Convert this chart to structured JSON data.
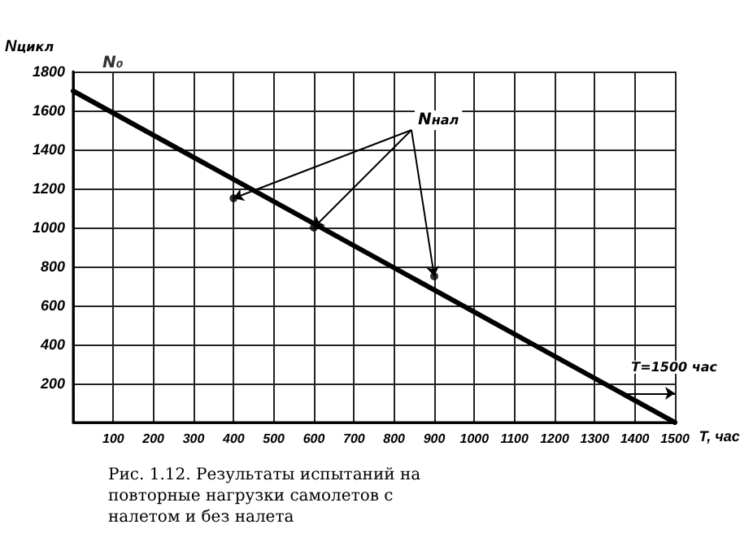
{
  "chart_data": {
    "type": "line",
    "title": "Рис. 1.12. Результаты испытаний на повторные нагрузки самолетов с налетом и без налета",
    "xlabel": "T, час",
    "ylabel": "N$_{цикл}$",
    "series": [
      {
        "color": "#000000",
        "x": [
          0,
          1500
        ],
        "values": [
          1700,
          0
        ],
        "marker": "none",
        "line_style": "solid"
      },
      {
        "type": "scatter",
        "color": "#000000",
        "x": [
          400,
          600,
          900
        ],
        "values": [
          1150,
          1000,
          750
        ],
        "marker": "circle"
      }
    ],
    "annotations": [
      {
        "text": "N₀",
        "x": 0,
        "y": 1700
      },
      {
        "text": "N$_{нал}$",
        "x": 600,
        "y": 1000
      },
      "T=1500 час"
    ],
    "xlim": [
      0,
      1500
    ],
    "ylim": [
      0,
      1800
    ],
    "xticks": [
      {
        "value": 0,
        "label": null
      },
      100,
      200,
      300,
      400,
      500,
      600,
      700,
      800,
      900,
      1000,
      1100,
      1200,
      1300,
      1400,
      1500
    ],
    "yticks": [
      {
        "value": 0,
        "label": null
      },
      200,
      400,
      600,
      800,
      1000,
      1200,
      1400,
      1600,
      1800
    ],
    "grid": true
  }
}
